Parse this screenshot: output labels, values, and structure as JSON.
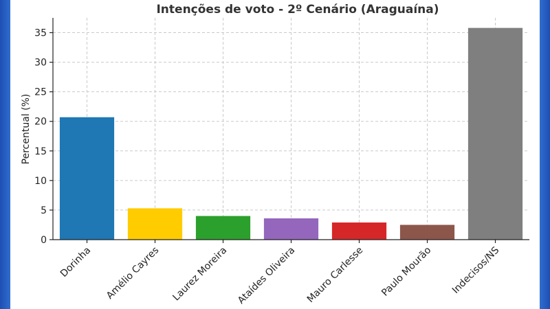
{
  "chart_data": {
    "type": "bar",
    "title": "Intenções de voto - 2º Cenário (Araguaína)",
    "ylabel": "Percentual (%)",
    "xlabel": "",
    "ylim": [
      0,
      37.5
    ],
    "yticks": [
      0,
      5,
      10,
      15,
      20,
      25,
      30,
      35
    ],
    "grid": true,
    "categories": [
      "Dorinha",
      "Amélio Cayres",
      "Laurez Moreira",
      "Ataídes Oliveira",
      "Mauro Carlesse",
      "Paulo Mourão",
      "Indecisos/NS"
    ],
    "values": [
      20.7,
      5.3,
      4.0,
      3.6,
      2.9,
      2.5,
      35.8
    ],
    "colors": [
      "#1f77b4",
      "#ffcc00",
      "#2ca02c",
      "#9467bd",
      "#d62728",
      "#8c564b",
      "#7f7f7f"
    ]
  }
}
